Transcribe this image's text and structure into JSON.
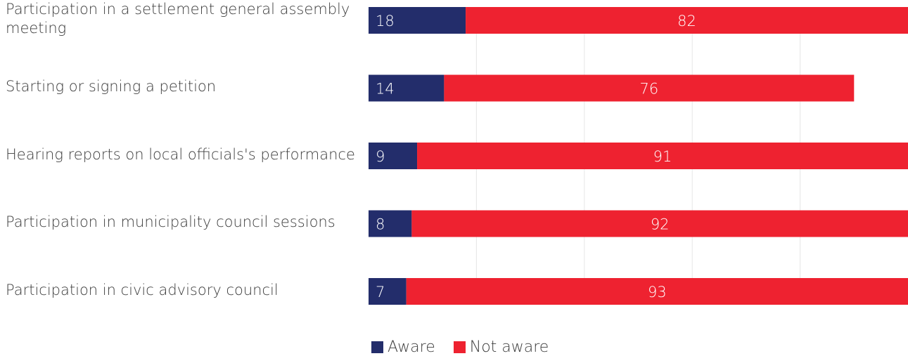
{
  "chart_data": {
    "type": "bar",
    "orientation": "horizontal",
    "stacked": true,
    "title": "",
    "xlabel": "",
    "ylabel": "",
    "categories": [
      "Participation in a settlement general assembly meeting",
      "Starting or signing a petition",
      "Hearing reports on local officials's performance",
      "Participation in municipality council sessions",
      "Participation in civic advisory council"
    ],
    "series": [
      {
        "name": "Aware",
        "color": "#232d6b",
        "values": [
          18,
          14,
          9,
          8,
          7
        ]
      },
      {
        "name": "Not aware",
        "color": "#ee2230",
        "values": [
          82,
          76,
          91,
          92,
          93
        ]
      }
    ],
    "xlim": [
      0,
      100
    ],
    "grid": true,
    "legend_position": "bottom"
  }
}
